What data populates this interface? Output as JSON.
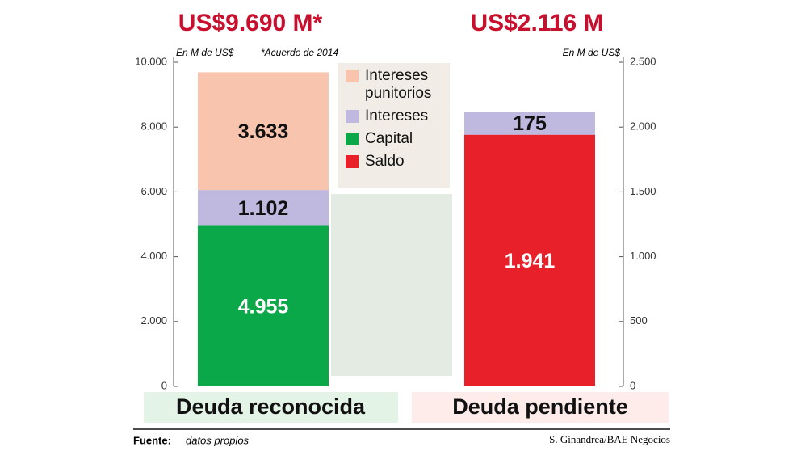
{
  "chart_data": [
    {
      "type": "bar",
      "stacked": true,
      "title": "US$9.690 M*",
      "subtitle": "En M de US$",
      "note": "*Acuerdo de 2014",
      "categories": [
        "Deuda reconocida"
      ],
      "series": [
        {
          "name": "Capital",
          "color": "#0ba84a",
          "values": [
            4955
          ],
          "value_labels": [
            "4.955"
          ]
        },
        {
          "name": "Intereses",
          "color": "#bfb9e0",
          "values": [
            1102
          ],
          "value_labels": [
            "1.102"
          ]
        },
        {
          "name": "Intereses punitorios",
          "color": "#f8c4ad",
          "values": [
            3633
          ],
          "value_labels": [
            "3.633"
          ]
        }
      ],
      "ylim": [
        0,
        10000
      ],
      "yticks": [
        0,
        {
          "value": 2000,
          "label": "2.000"
        },
        {
          "value": 4000,
          "label": "4.000"
        },
        {
          "value": 6000,
          "label": "6.000"
        },
        {
          "value": 8000,
          "label": "8.000"
        },
        {
          "value": 10000,
          "label": "10.000"
        }
      ]
    },
    {
      "type": "bar",
      "stacked": true,
      "title": "US$2.116 M",
      "subtitle": "En M de US$",
      "categories": [
        "Deuda pendiente"
      ],
      "series": [
        {
          "name": "Saldo",
          "color": "#e8202a",
          "values": [
            1941
          ],
          "value_labels": [
            "1.941"
          ],
          "axis": "y2"
        },
        {
          "name": "Intereses",
          "color": "#bfb9e0",
          "values": [
            175
          ],
          "axis": "y2"
        }
      ],
      "y2lim": [
        0,
        2500
      ],
      "y2ticks": [
        0,
        500,
        {
          "value": 1000,
          "label": "1.000"
        },
        {
          "value": 1500,
          "label": "1.500"
        },
        {
          "value": 2000,
          "label": "2.000"
        },
        {
          "value": 2500,
          "label": "2.500"
        }
      ]
    }
  ],
  "footer": {
    "source_label": "Fuente:",
    "source": "datos propios",
    "credit": "S. Ginandrea/BAE Negocios"
  }
}
